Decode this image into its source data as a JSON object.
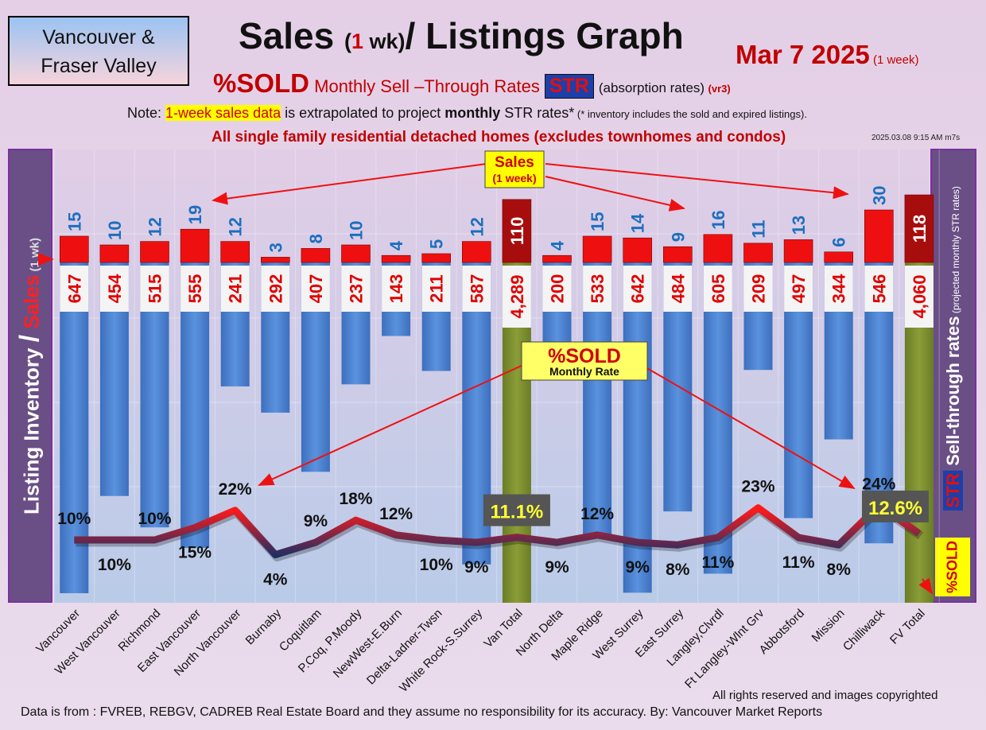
{
  "header": {
    "region_line1": "Vancouver &",
    "region_line2": "Fraser Valley",
    "title_a": "Sales ",
    "title_b": "(",
    "title_c": "1",
    "title_d": " wk)",
    "title_e": "/ Listings Graph",
    "date": "Mar 7  2025",
    "date_note": " (1 week)",
    "sub_sold": "%SOLD",
    "sub_rates": " Monthly Sell –Through Rates",
    "str": "STR",
    "sub_abs": "(absorption rates)",
    "sub_ver": "(vr3)",
    "note_a": "Note: ",
    "note_hl": "1-week sales data",
    "note_b": " is extrapolated to project ",
    "note_bold": "monthly",
    "note_c": " STR rates*",
    "note_small": " (* inventory includes the sold and expired listings).",
    "note2": "All single family residential detached homes (excludes townhomes and condos)",
    "timestamp": "2025.03.08 9:15 AM m7s"
  },
  "side": {
    "left_a": "Listing Inventory ",
    "left_slash": "/",
    "left_sales": " Sales",
    "left_small": " (1 wk)",
    "right_str": "STR",
    "right_main": " Sell-through rates",
    "right_small": " (projected monthly STR rates)",
    "right_sold": "%SOLD"
  },
  "callouts": {
    "sales_line1": "Sales",
    "sales_line2": "(1 week)",
    "sold_line1": "%SOLD",
    "sold_line2": "Monthly Rate"
  },
  "footer": {
    "rights": "All rights reserved and  images copyrighted",
    "source": "Data is from : FVREB, REBGV, CADREB Real Estate Board and they assume no responsibility for its accuracy. By: Vancouver Market Reports"
  },
  "colors": {
    "inventory_bar": "#4f86d2",
    "total_bar": "#7a8c2e",
    "sales_bar": "#ee1010",
    "total_sales_bar": "#a80d0d",
    "sales_label": "#1c6fbf",
    "inventory_label": "#e00000"
  },
  "chart_data": {
    "type": "bar",
    "title": "Sales (1 wk)/ Listings Graph",
    "categories": [
      "Vancouver",
      "West Vancouver",
      "Richmond",
      "East Vancouver",
      "North Vancouver",
      "Burnaby",
      "Coquitlam",
      "P.Coq, P.Moody",
      "NewWest-E.Burn",
      "Delta-Ladner-Twsn",
      "White Rock-S.Surrey",
      "Van Total",
      "North Delta",
      "Maple Ridge",
      "West Surrey",
      "East Surrey",
      "Langley,Clvrdl",
      "Ft Langley-Wlnt Grv",
      "Abbotsford",
      "Mission",
      "Chilliwack",
      "FV Total"
    ],
    "series": [
      {
        "name": "Sales",
        "values": [
          15,
          10,
          12,
          19,
          12,
          3,
          8,
          10,
          4,
          5,
          12,
          110,
          4,
          15,
          14,
          9,
          16,
          11,
          13,
          6,
          30,
          118
        ]
      },
      {
        "name": "Listing Inventory",
        "values": [
          647,
          454,
          515,
          555,
          241,
          292,
          407,
          237,
          143,
          211,
          587,
          4289,
          200,
          533,
          642,
          484,
          605,
          209,
          497,
          344,
          546,
          4060
        ]
      },
      {
        "name": "%SOLD",
        "values": [
          10,
          10,
          10,
          15,
          22,
          4,
          9,
          18,
          12,
          10,
          9,
          11.1,
          9,
          12,
          9,
          8,
          11,
          23,
          11,
          8,
          24,
          12.6
        ]
      }
    ],
    "value_labels": {
      "sales": [
        "15",
        "10",
        "12",
        "19",
        "12",
        "3",
        "8",
        "10",
        "4",
        "5",
        "12",
        "110",
        "4",
        "15",
        "14",
        "9",
        "16",
        "11",
        "13",
        "6",
        "30",
        "118"
      ],
      "inventory": [
        "647",
        "454",
        "515",
        "555",
        "241",
        "292",
        "407",
        "237",
        "143",
        "211",
        "587",
        "4,289",
        "200",
        "533",
        "642",
        "484",
        "605",
        "209",
        "497",
        "344",
        "546",
        "4,060"
      ],
      "sold": [
        "10%",
        "10%",
        "10%",
        "15%",
        "22%",
        "4%",
        "9%",
        "18%",
        "12%",
        "10%",
        "9%",
        "11.1%",
        "9%",
        "12%",
        "9%",
        "8%",
        "11%",
        "23%",
        "11%",
        "8%",
        "24%",
        "12.6%"
      ]
    },
    "total_indices": [
      11,
      21
    ],
    "ylabel": "Listing Inventory / Sales (1 wk)",
    "y2label": "STR Sell-through rates (projected monthly STR rates)"
  }
}
